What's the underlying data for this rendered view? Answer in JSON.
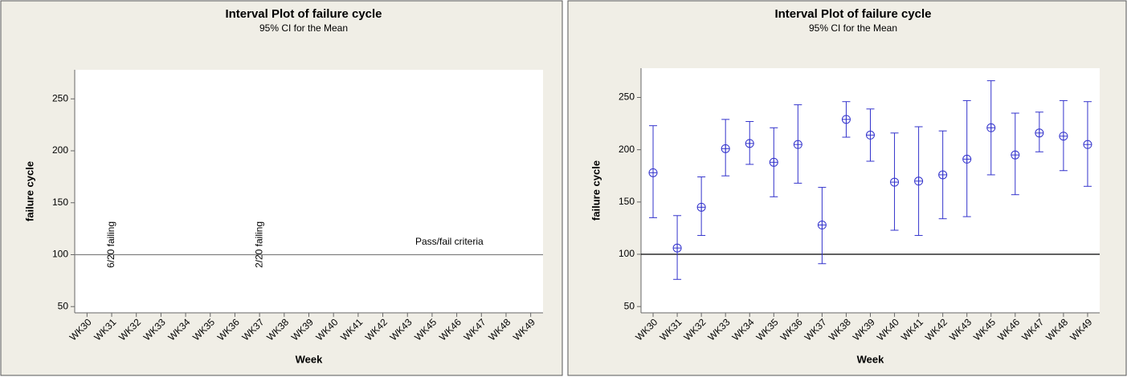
{
  "chart_data": [
    {
      "type": "interval",
      "title": "Interval Plot of failure cycle",
      "subtitle": "95% CI for the Mean",
      "x_label": "Week",
      "y_label": "failure cycle",
      "categories": [
        "WK30",
        "WK31",
        "WK32",
        "WK33",
        "WK34",
        "WK35",
        "WK36",
        "WK37",
        "WK38",
        "WK39",
        "WK40",
        "WK41",
        "WK42",
        "WK43",
        "WK45",
        "WK46",
        "WK47",
        "WK48",
        "WK49"
      ],
      "ylim": [
        44,
        278
      ],
      "yticks": [
        50,
        100,
        150,
        200,
        250
      ],
      "reference_line": 100,
      "reference_color": "#808080",
      "annotations": [
        {
          "text": "6/20 failing",
          "color": "#e8262a"
        },
        {
          "text": "2/20 failing",
          "color": "#e8262a"
        },
        {
          "text": "Pass/fail criteria",
          "color": "#000000"
        }
      ]
    },
    {
      "type": "interval",
      "title": "Interval Plot of failure cycle",
      "subtitle": "95% CI for the Mean",
      "x_label": "Week",
      "y_label": "failure cycle",
      "categories": [
        "WK30",
        "WK31",
        "WK32",
        "WK33",
        "WK34",
        "WK35",
        "WK36",
        "WK37",
        "WK38",
        "WK39",
        "WK40",
        "WK41",
        "WK42",
        "WK43",
        "WK45",
        "WK46",
        "WK47",
        "WK48",
        "WK49"
      ],
      "ylim": [
        44,
        278
      ],
      "yticks": [
        50,
        100,
        150,
        200,
        250
      ],
      "reference_line": 100,
      "reference_color": "#000000",
      "color": "#3333cc",
      "values": [
        178,
        106,
        145,
        201,
        206,
        188,
        205,
        128,
        229,
        214,
        169,
        170,
        176,
        191,
        221,
        195,
        216,
        213,
        205
      ],
      "lower": [
        135,
        76,
        118,
        175,
        186,
        155,
        168,
        91,
        212,
        189,
        123,
        118,
        134,
        136,
        176,
        157,
        198,
        180,
        165
      ],
      "upper": [
        223,
        137,
        174,
        229,
        227,
        221,
        243,
        164,
        246,
        239,
        216,
        222,
        218,
        247,
        266,
        235,
        236,
        247,
        246
      ]
    }
  ]
}
